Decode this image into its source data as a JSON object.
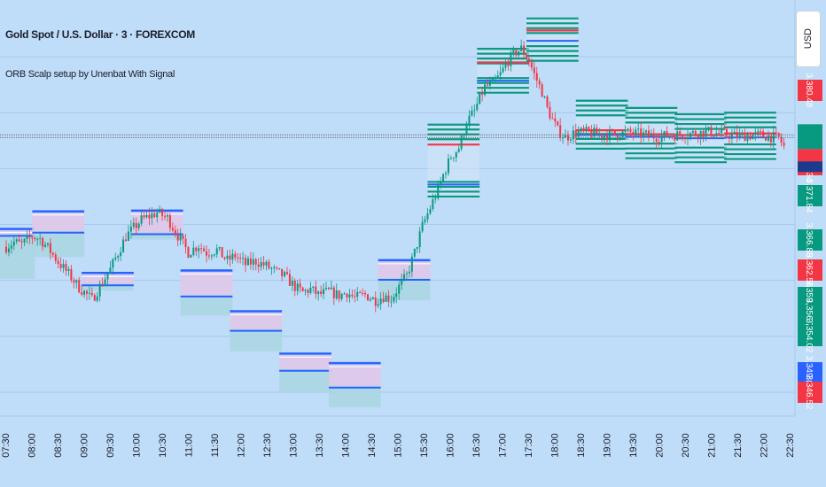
{
  "header": {
    "symbol_title": "Gold Spot / U.S. Dollar · 3 · FOREXCOM",
    "indicator_title": "ORB Scalp setup by Unenbat With Signal",
    "currency_button": "USD"
  },
  "colors": {
    "background": "#bfdcf9",
    "up": "#089981",
    "down": "#f23645",
    "orb_line": "#2962ff",
    "orb_fill": "#e0c8e8",
    "lower_fill": "#a8d6df",
    "signal_green": "#089981",
    "signal_red": "#f23645"
  },
  "chart_data": {
    "type": "candlestick",
    "x_tick_labels": [
      "07:30",
      "08:00",
      "08:30",
      "09:00",
      "09:30",
      "10:00",
      "10:30",
      "11:00",
      "11:30",
      "12:00",
      "12:30",
      "13:00",
      "13:30",
      "14:00",
      "14:30",
      "15:00",
      "15:30",
      "16:00",
      "16:30",
      "17:00",
      "17:30",
      "18:00",
      "18:30",
      "19:00",
      "19:30",
      "20:00",
      "20:30",
      "21:00",
      "21:30",
      "22:00",
      "22:30"
    ],
    "price_labels": [
      {
        "value": "3,380.48",
        "color": "red"
      },
      {
        "value": "3,375.34",
        "color": "red"
      },
      {
        "value": "3,371.84",
        "color": "green"
      },
      {
        "value": "3,366.88",
        "color": "green"
      },
      {
        "value": "3,362.56",
        "color": "red"
      },
      {
        "value": "3,359.06",
        "color": "green"
      },
      {
        "value": "3,356.71",
        "color": "green"
      },
      {
        "value": "3,354.02",
        "color": "green"
      },
      {
        "value": "3,349.00",
        "color": "blue"
      },
      {
        "value": "3,346.52",
        "color": "red"
      }
    ],
    "y_range": [
      3342,
      3393
    ],
    "current_price": 3377,
    "path": [
      [
        0,
        3363.2
      ],
      [
        3,
        3363.8
      ],
      [
        6,
        3363.5
      ],
      [
        10,
        3364.5
      ],
      [
        13,
        3364.2
      ],
      [
        16,
        3363.1
      ],
      [
        20,
        3361.3
      ],
      [
        24,
        3359.8
      ],
      [
        28,
        3358.1
      ],
      [
        33,
        3356.6
      ],
      [
        40,
        3360.4
      ],
      [
        46,
        3364.5
      ],
      [
        52,
        3366.6
      ],
      [
        58,
        3367.5
      ],
      [
        62,
        3366.8
      ],
      [
        66,
        3364.6
      ],
      [
        70,
        3362.5
      ],
      [
        74,
        3363.4
      ],
      [
        77,
        3362.5
      ],
      [
        81,
        3362.8
      ],
      [
        85,
        3361.5
      ],
      [
        88,
        3362.1
      ],
      [
        92,
        3361.0
      ],
      [
        96,
        3361.4
      ],
      [
        100,
        3360.8
      ],
      [
        104,
        3360.0
      ],
      [
        107,
        3359.5
      ],
      [
        111,
        3358.2
      ],
      [
        114,
        3357.5
      ],
      [
        117,
        3357.9
      ],
      [
        120,
        3357.2
      ],
      [
        124,
        3357.6
      ],
      [
        128,
        3357.1
      ],
      [
        131,
        3357.5
      ],
      [
        134,
        3356.8
      ],
      [
        138,
        3357.2
      ],
      [
        142,
        3356.5
      ],
      [
        145,
        3357.0
      ],
      [
        148,
        3356.7
      ],
      [
        151,
        3358.2
      ],
      [
        154,
        3359.6
      ],
      [
        157,
        3362.5
      ],
      [
        160,
        3365.8
      ],
      [
        163,
        3368.1
      ],
      [
        166,
        3370.4
      ],
      [
        168,
        3372.2
      ],
      [
        171,
        3374.5
      ],
      [
        174,
        3375.6
      ],
      [
        177,
        3378.8
      ],
      [
        180,
        3380.2
      ],
      [
        182,
        3381.8
      ],
      [
        184,
        3383.2
      ],
      [
        187,
        3383.6
      ],
      [
        190,
        3384.8
      ],
      [
        193,
        3386.5
      ],
      [
        196,
        3387.6
      ],
      [
        198,
        3388.0
      ],
      [
        201,
        3386.5
      ],
      [
        203,
        3384.8
      ],
      [
        206,
        3382.6
      ],
      [
        208,
        3380.5
      ],
      [
        210,
        3379.1
      ],
      [
        212,
        3377.8
      ],
      [
        215,
        3376.9
      ],
      [
        218,
        3377.4
      ],
      [
        222,
        3377.6
      ],
      [
        230,
        3377.2
      ],
      [
        240,
        3377.5
      ],
      [
        250,
        3377.0
      ],
      [
        260,
        3377.3
      ],
      [
        270,
        3377.6
      ],
      [
        280,
        3377.1
      ],
      [
        290,
        3377.2
      ],
      [
        297,
        3376.8
      ],
      [
        300,
        3375.2
      ]
    ],
    "orb_sessions": [
      {
        "label": "07:30",
        "upper": 3365.1,
        "lower": 3364.8,
        "box_bottom": 3360.1,
        "extend": [
          -3,
          11
        ]
      },
      {
        "label": "08:00",
        "upper": 3367.3,
        "lower": 3365.2,
        "box_bottom": 3362.8,
        "extend": [
          10,
          30
        ]
      },
      {
        "label": "09:00",
        "upper": 3359.6,
        "lower": 3358.6,
        "box_bottom": 3358.6,
        "extend": [
          29,
          49
        ]
      },
      {
        "label": "10:00",
        "upper": 3367.4,
        "lower": 3365.0,
        "box_bottom": 3365.0,
        "extend": [
          48,
          68
        ]
      },
      {
        "label": "11:00",
        "upper": 3359.9,
        "lower": 3357.2,
        "box_bottom": 3355.5,
        "extend": [
          67,
          87
        ]
      },
      {
        "label": "12:00",
        "upper": 3354.8,
        "lower": 3352.9,
        "box_bottom": 3351.0,
        "extend": [
          86,
          106
        ]
      },
      {
        "label": "13:00",
        "upper": 3349.5,
        "lower": 3347.9,
        "box_bottom": 3345.8,
        "extend": [
          105,
          125
        ]
      },
      {
        "label": "14:00",
        "upper": 3348.3,
        "lower": 3345.8,
        "box_bottom": 3344.0,
        "extend": [
          124,
          144
        ]
      },
      {
        "label": "15:00",
        "upper": 3361.2,
        "lower": 3359.3,
        "box_bottom": 3357.4,
        "extend": [
          143,
          163
        ]
      }
    ],
    "signal_sessions": [
      {
        "label": "16:00",
        "top": 3378.5,
        "bottom": 3369.5,
        "mid": 3376.0,
        "mid2": 3371.0,
        "extend": [
          162,
          182
        ]
      },
      {
        "label": "17:00",
        "top": 3388.0,
        "bottom": 3382.5,
        "mid": 3386.3,
        "mid2": 3384.0,
        "extend": [
          181,
          201
        ]
      },
      {
        "label": "18:00",
        "top": 3391.8,
        "bottom": 3386.5,
        "mid": 3390.3,
        "mid2": 3389.0,
        "extend": [
          200,
          220
        ]
      },
      {
        "label": "19:00",
        "top": 3381.5,
        "bottom": 3375.5,
        "mid": 3377.8,
        "mid2": 3377.2,
        "extend": [
          219,
          239
        ]
      },
      {
        "label": "20:00",
        "top": 3380.6,
        "bottom": 3374.3,
        "mid": 3377.3,
        "mid2": 3377.0,
        "extend": [
          238,
          258
        ]
      },
      {
        "label": "21:00",
        "top": 3379.8,
        "bottom": 3373.8,
        "mid": 3377.2,
        "mid2": 3376.8,
        "extend": [
          257,
          277
        ]
      },
      {
        "label": "22:00",
        "top": 3380.0,
        "bottom": 3374.2,
        "mid": 3377.4,
        "mid2": 3376.9,
        "extend": [
          276,
          296
        ]
      }
    ]
  }
}
